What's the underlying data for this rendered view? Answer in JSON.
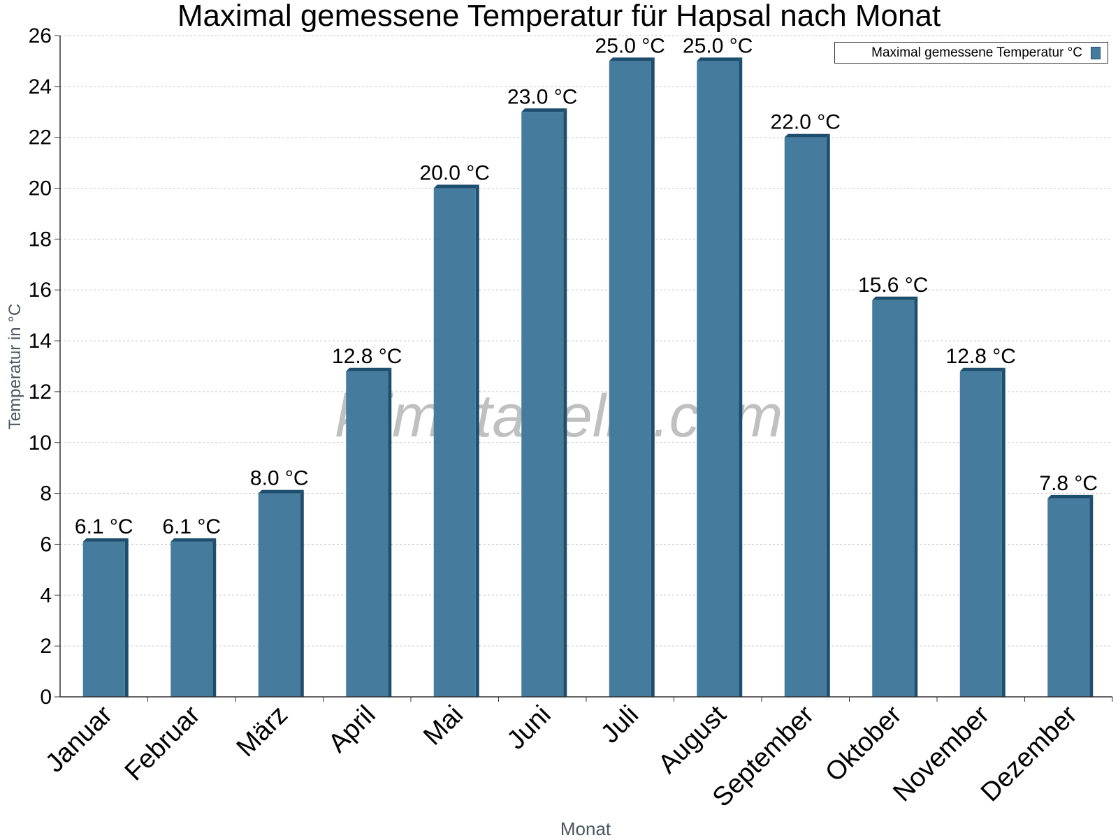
{
  "chart_data": {
    "type": "bar",
    "title": "Maximal gemessene Temperatur für Hapsal nach Monat",
    "xlabel": "Monat",
    "ylabel": "Temperatur in °C",
    "categories": [
      "Januar",
      "Februar",
      "März",
      "April",
      "Mai",
      "Juni",
      "Juli",
      "August",
      "September",
      "Oktober",
      "November",
      "Dezember"
    ],
    "series": [
      {
        "name": "Maximal gemessene Temperatur °C",
        "values": [
          6.1,
          6.1,
          8.0,
          12.8,
          20.0,
          23.0,
          25.0,
          25.0,
          22.0,
          15.6,
          12.8,
          7.8
        ]
      }
    ],
    "data_labels": [
      "6.1 °C",
      "6.1 °C",
      "8.0 °C",
      "12.8 °C",
      "20.0 °C",
      "23.0 °C",
      "25.0 °C",
      "25.0 °C",
      "22.0 °C",
      "15.6 °C",
      "12.8 °C",
      "7.8 °C"
    ],
    "ylim": [
      0,
      26
    ],
    "yticks": [
      0,
      2,
      4,
      6,
      8,
      10,
      12,
      14,
      16,
      18,
      20,
      22,
      24,
      26
    ],
    "grid": true,
    "legend_position": "top-right",
    "watermark": "klimatabelle.com",
    "colors": {
      "bar": "#457b9d",
      "bar_side": "#1d4e6e",
      "grid": "#c8c8c8"
    }
  }
}
